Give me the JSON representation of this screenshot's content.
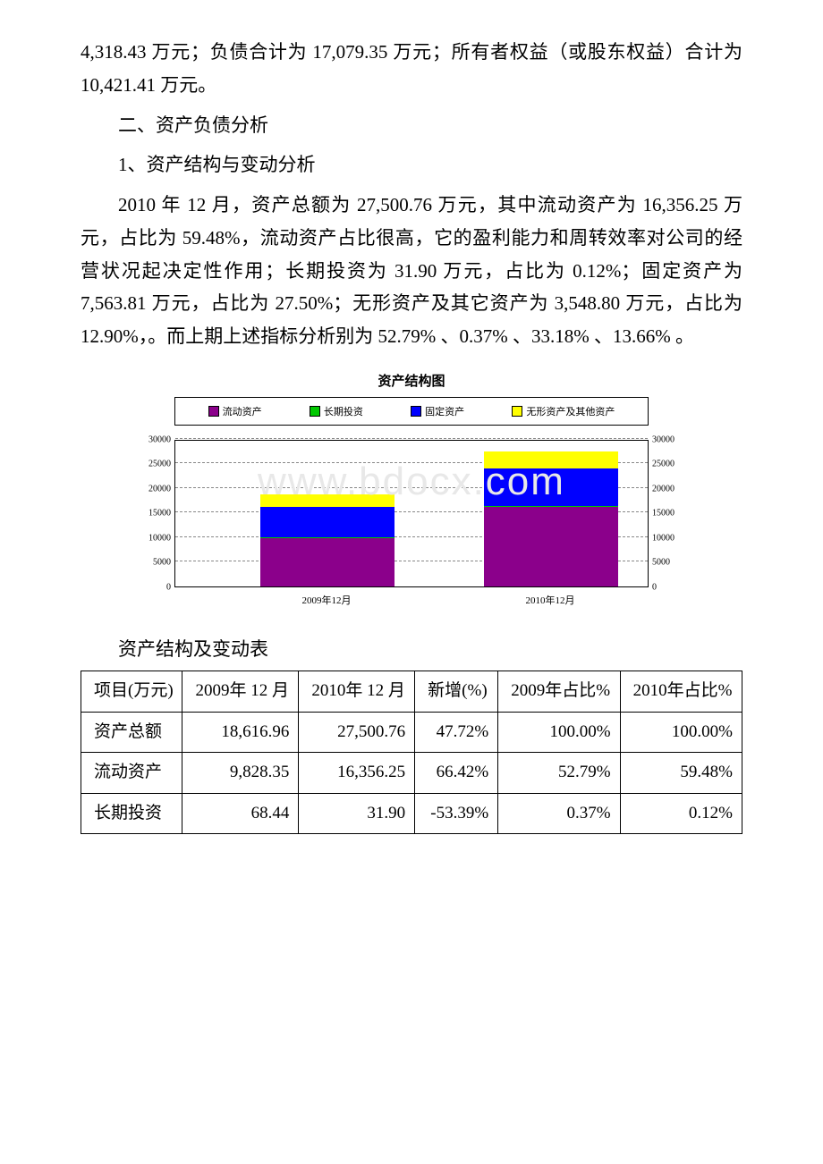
{
  "paragraphs": {
    "p1": "4,318.43 万元；负债合计为 17,079.35 万元；所有者权益（或股东权益）合计为 10,421.41 万元。",
    "p2": "二、资产负债分析",
    "p3": "1、资产结构与变动分析",
    "p4": "2010 年 12 月，资产总额为 27,500.76 万元，其中流动资产为 16,356.25 万元，占比为 59.48%，流动资产占比很高，它的盈利能力和周转效率对公司的经营状况起决定性作用；长期投资为 31.90 万元，占比为 0.12%；固定资产为 7,563.81 万元，占比为 27.50%；无形资产及其它资产为 3,548.80 万元，占比为 12.90%，。而上期上述指标分析别为 52.79% 、0.37% 、33.18% 、13.66% 。"
  },
  "chart": {
    "title": "资产结构图",
    "watermark": "www.bdocx.com",
    "legend": [
      {
        "label": "流动资产",
        "color": "#8b008b"
      },
      {
        "label": "长期投资",
        "color": "#00c800"
      },
      {
        "label": "固定资产",
        "color": "#0000ff"
      },
      {
        "label": "无形资产及其他资产",
        "color": "#ffff00"
      }
    ],
    "ylim": [
      0,
      30000
    ],
    "ytick_step": 5000,
    "yticks": [
      "0",
      "5000",
      "10000",
      "15000",
      "20000",
      "25000",
      "30000"
    ],
    "categories": [
      "2009年12月",
      "2010年12月"
    ],
    "series_colors": [
      "#8b008b",
      "#00c800",
      "#0000ff",
      "#ffff00"
    ],
    "stacks": [
      [
        9828.35,
        68.44,
        6177.0,
        2543.17
      ],
      [
        16356.25,
        31.9,
        7563.81,
        3548.8
      ]
    ],
    "background": "#ffffff"
  },
  "table": {
    "caption": "资产结构及变动表",
    "columns": [
      "项目(万元)",
      "2009年 12 月",
      "2010年 12 月",
      "新增(%)",
      "2009年占比%",
      "2010年占比%"
    ],
    "rows": [
      [
        "资产总额",
        "18,616.96",
        "27,500.76",
        "47.72%",
        "100.00%",
        "100.00%"
      ],
      [
        "流动资产",
        "9,828.35",
        "16,356.25",
        "66.42%",
        "52.79%",
        "59.48%"
      ],
      [
        "长期投资",
        "68.44",
        "31.90",
        "-53.39%",
        "0.37%",
        "0.12%"
      ]
    ]
  }
}
